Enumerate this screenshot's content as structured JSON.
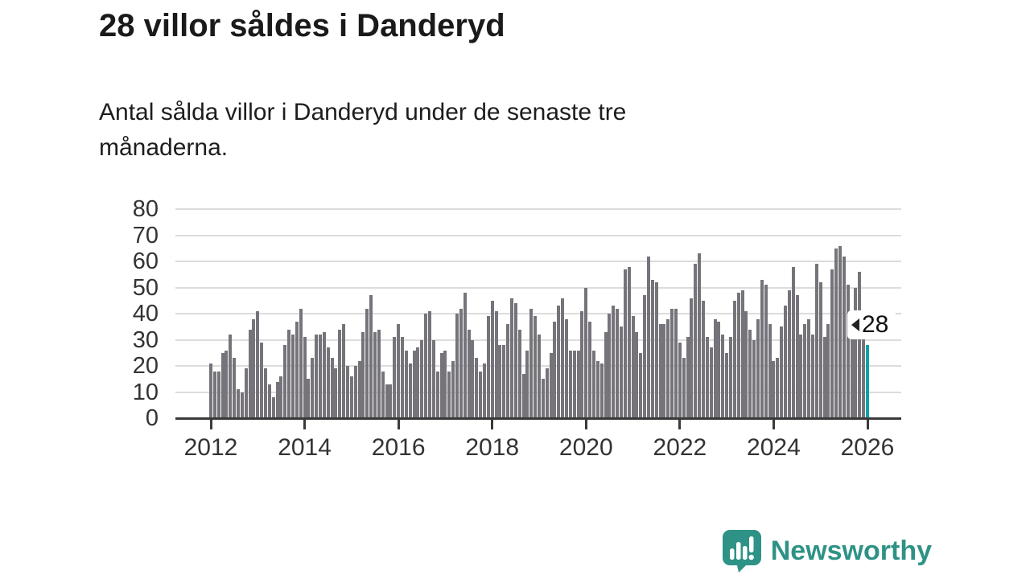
{
  "header": {
    "title": "28 villor såldes i Danderyd",
    "subtitle": "Antal sålda villor i Danderyd under de senaste tre\nmånaderna."
  },
  "chart_data": {
    "type": "bar",
    "title": "28 villor såldes i Danderyd",
    "subtitle": "Antal sålda villor i Danderyd under de senaste tre månaderna.",
    "x_period": "monthly, 2012-01 through 2026-01",
    "x_tick_labels": [
      "2012",
      "2014",
      "2016",
      "2018",
      "2020",
      "2022",
      "2024",
      "2026"
    ],
    "y_tick_labels": [
      "0",
      "10",
      "20",
      "30",
      "40",
      "50",
      "60",
      "70",
      "80"
    ],
    "ylim": [
      0,
      80
    ],
    "grid": true,
    "legend": false,
    "bar_color": "#76747a",
    "highlight_color": "#0ea2a2",
    "values": [
      21,
      18,
      18,
      25,
      26,
      32,
      23,
      11,
      10,
      19,
      34,
      38,
      41,
      29,
      19,
      13,
      8,
      14,
      16,
      28,
      34,
      32,
      37,
      42,
      31,
      15,
      23,
      32,
      32,
      33,
      27,
      23,
      19,
      34,
      36,
      20,
      16,
      20,
      22,
      33,
      42,
      47,
      33,
      34,
      18,
      13,
      13,
      31,
      36,
      31,
      26,
      21,
      26,
      27,
      30,
      40,
      41,
      30,
      18,
      25,
      26,
      18,
      22,
      40,
      42,
      48,
      34,
      30,
      23,
      18,
      21,
      39,
      45,
      41,
      28,
      28,
      36,
      46,
      44,
      34,
      17,
      26,
      42,
      39,
      32,
      15,
      19,
      25,
      37,
      43,
      46,
      38,
      26,
      26,
      26,
      41,
      50,
      37,
      26,
      22,
      21,
      33,
      40,
      43,
      42,
      35,
      57,
      58,
      39,
      33,
      25,
      47,
      62,
      53,
      52,
      36,
      36,
      38,
      42,
      42,
      29,
      23,
      31,
      46,
      59,
      63,
      45,
      31,
      27,
      38,
      37,
      32,
      25,
      31,
      45,
      48,
      49,
      41,
      34,
      30,
      38,
      53,
      51,
      36,
      22,
      23,
      35,
      43,
      49,
      58,
      47,
      32,
      36,
      38,
      32,
      59,
      52,
      31,
      36,
      57,
      65,
      66,
      62,
      51,
      41,
      50,
      56,
      39,
      28
    ],
    "highlight_index": 168,
    "annotation": {
      "label": "28",
      "value": 28
    }
  },
  "footer": {
    "brand": "Newsworthy",
    "brand_color": "#2e9286"
  }
}
